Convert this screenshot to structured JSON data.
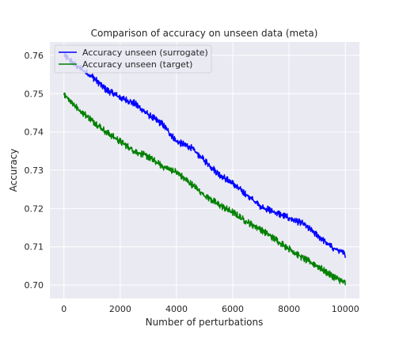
{
  "chart_data": {
    "type": "line",
    "title": "Comparison of accuracy on unseen data (meta)",
    "xlabel": "Number of perturbations",
    "ylabel": "Accuracy",
    "xlim": [
      -500,
      10500
    ],
    "ylim": [
      0.6965,
      0.7635
    ],
    "xticks": [
      0,
      2000,
      4000,
      6000,
      8000,
      10000
    ],
    "xtick_labels": [
      "0",
      "2000",
      "4000",
      "6000",
      "8000",
      "10000"
    ],
    "yticks": [
      0.7,
      0.71,
      0.72,
      0.73,
      0.74,
      0.75,
      0.76
    ],
    "ytick_labels": [
      "0.70",
      "0.71",
      "0.72",
      "0.73",
      "0.74",
      "0.75",
      "0.76"
    ],
    "grid": true,
    "legend_position": "upper-left",
    "background": "#EAEAF2",
    "series": [
      {
        "name": "Accuracy unseen (surrogate)",
        "color": "#0000FF",
        "x": [
          0,
          500,
          1000,
          1500,
          2000,
          2500,
          3000,
          3500,
          4000,
          4500,
          5000,
          5500,
          6000,
          6500,
          7000,
          7500,
          8000,
          8500,
          9000,
          9500,
          10000
        ],
        "y": [
          0.76,
          0.757,
          0.7545,
          0.751,
          0.749,
          0.7475,
          0.7445,
          0.742,
          0.7375,
          0.736,
          0.7325,
          0.729,
          0.7265,
          0.7235,
          0.7205,
          0.719,
          0.7175,
          0.716,
          0.713,
          0.71,
          0.708
        ]
      },
      {
        "name": "Accuracy unseen (target)",
        "color": "#008000",
        "x": [
          0,
          500,
          1000,
          1500,
          2000,
          2500,
          3000,
          3500,
          4000,
          4500,
          5000,
          5500,
          6000,
          6500,
          7000,
          7500,
          8000,
          8500,
          9000,
          9500,
          10000
        ],
        "y": [
          0.75,
          0.746,
          0.743,
          0.74,
          0.7375,
          0.735,
          0.7335,
          0.731,
          0.7295,
          0.7265,
          0.7235,
          0.721,
          0.719,
          0.7165,
          0.7145,
          0.712,
          0.7095,
          0.707,
          0.705,
          0.7025,
          0.7005
        ]
      }
    ]
  }
}
